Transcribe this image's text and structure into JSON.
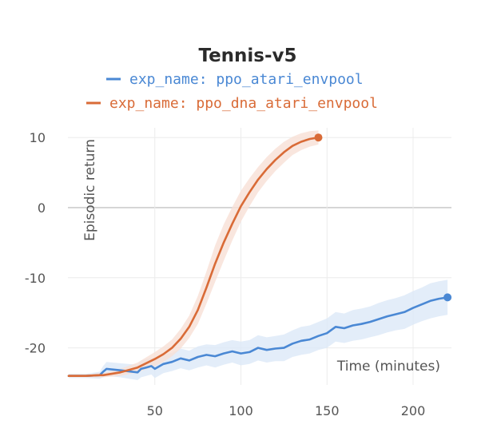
{
  "chart_data": {
    "type": "line",
    "title": "Tennis-v5",
    "xlabel": "Time (minutes)",
    "ylabel": "Episodic return",
    "xlim": [
      0,
      225
    ],
    "ylim": [
      -24,
      12
    ],
    "xticks": [
      50,
      100,
      150,
      200
    ],
    "yticks": [
      10,
      0,
      -10,
      -20
    ],
    "xtick_labels": [
      "50",
      "100",
      "150",
      "200"
    ],
    "ytick_labels": [
      "10",
      "0",
      "-10",
      "-20"
    ],
    "grid": true,
    "legend_position": "top",
    "series": [
      {
        "name": "exp_name: ppo_atari_envpool",
        "color": "#4a88d4",
        "band_color": "#dce8f8",
        "x": [
          0,
          10,
          18,
          20,
          22,
          30,
          40,
          42,
          45,
          48,
          50,
          55,
          60,
          65,
          70,
          75,
          80,
          85,
          90,
          95,
          100,
          105,
          110,
          115,
          120,
          125,
          130,
          135,
          140,
          145,
          150,
          155,
          160,
          165,
          170,
          175,
          180,
          185,
          190,
          195,
          200,
          205,
          210,
          215,
          220
        ],
        "y": [
          -24.0,
          -24.0,
          -23.9,
          -23.4,
          -23.0,
          -23.2,
          -23.5,
          -23.0,
          -22.8,
          -22.6,
          -23.0,
          -22.3,
          -22.0,
          -21.5,
          -21.8,
          -21.3,
          -21.0,
          -21.2,
          -20.8,
          -20.5,
          -20.8,
          -20.6,
          -20.0,
          -20.3,
          -20.1,
          -20.0,
          -19.4,
          -19.0,
          -18.8,
          -18.3,
          -17.9,
          -17.0,
          -17.2,
          -16.8,
          -16.6,
          -16.3,
          -15.9,
          -15.5,
          -15.2,
          -14.9,
          -14.3,
          -13.8,
          -13.3,
          -13.0,
          -12.8
        ],
        "band": [
          0.3,
          0.3,
          0.5,
          0.8,
          1.0,
          1.0,
          1.1,
          1.2,
          1.2,
          1.2,
          1.3,
          1.3,
          1.3,
          1.4,
          1.4,
          1.5,
          1.5,
          1.6,
          1.6,
          1.6,
          1.7,
          1.7,
          1.8,
          1.8,
          1.8,
          1.9,
          1.9,
          2.0,
          2.0,
          2.0,
          2.1,
          2.1,
          2.1,
          2.2,
          2.2,
          2.2,
          2.3,
          2.3,
          2.3,
          2.4,
          2.4,
          2.4,
          2.5,
          2.5,
          2.5
        ]
      },
      {
        "name": "exp_name: ppo_dna_atari_envpool",
        "color": "#d96b37",
        "band_color": "#f8e0d6",
        "x": [
          0,
          10,
          18,
          20,
          30,
          40,
          50,
          55,
          60,
          65,
          70,
          75,
          80,
          85,
          90,
          95,
          100,
          105,
          110,
          115,
          120,
          125,
          130,
          135,
          140,
          145
        ],
        "y": [
          -24.0,
          -24.0,
          -23.9,
          -23.9,
          -23.5,
          -22.8,
          -21.6,
          -20.9,
          -20.0,
          -18.7,
          -17.0,
          -14.6,
          -11.4,
          -8.0,
          -5.0,
          -2.3,
          0.2,
          2.2,
          4.0,
          5.5,
          6.8,
          7.9,
          8.8,
          9.4,
          9.8,
          10.0
        ],
        "band": [
          0.2,
          0.2,
          0.3,
          0.3,
          0.5,
          0.7,
          1.0,
          1.1,
          1.2,
          1.4,
          1.6,
          2.0,
          2.3,
          2.6,
          2.6,
          2.4,
          2.2,
          2.0,
          1.8,
          1.7,
          1.6,
          1.5,
          1.3,
          1.2,
          1.1,
          1.0
        ]
      }
    ]
  }
}
